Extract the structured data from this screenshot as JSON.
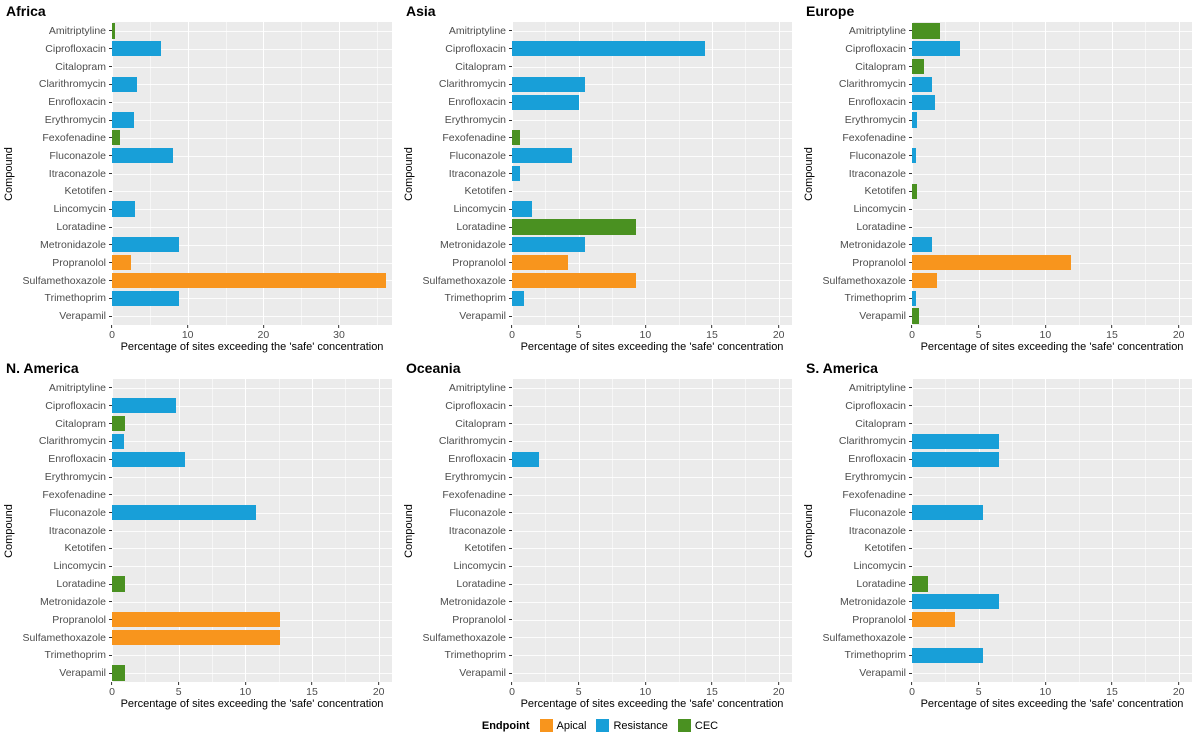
{
  "legend": {
    "title": "Endpoint",
    "entries": [
      {
        "label": "Apical",
        "color": "#F8951D"
      },
      {
        "label": "Resistance",
        "color": "#189FD8"
      },
      {
        "label": "CEC",
        "color": "#4A9121"
      }
    ]
  },
  "chart_data": {
    "type": "bar",
    "orientation": "horizontal",
    "xlabel": "Percentage of sites exceeding the 'safe' concentration",
    "ylabel": "Compound",
    "panel_background": "#EBEBEB",
    "grid": "white major and minor vertical lines, white horizontal lines per category",
    "legend_position": "bottom",
    "categories": [
      "Amitriptyline",
      "Ciprofloxacin",
      "Citalopram",
      "Clarithromycin",
      "Enrofloxacin",
      "Erythromycin",
      "Fexofenadine",
      "Fluconazole",
      "Itraconazole",
      "Ketotifen",
      "Lincomycin",
      "Loratadine",
      "Metronidazole",
      "Propranolol",
      "Sulfamethoxazole",
      "Trimethoprim",
      "Verapamil"
    ],
    "panels": [
      {
        "title": "Africa",
        "xlim": [
          0,
          37
        ],
        "xticks": [
          0,
          10,
          20,
          30
        ],
        "values": [
          {
            "v": 0.4,
            "e": "CEC"
          },
          {
            "v": 6.5,
            "e": "Resistance"
          },
          null,
          {
            "v": 3.3,
            "e": "Resistance"
          },
          null,
          {
            "v": 2.9,
            "e": "Resistance"
          },
          {
            "v": 1.0,
            "e": "CEC"
          },
          {
            "v": 8.0,
            "e": "Resistance"
          },
          null,
          null,
          {
            "v": 3.0,
            "e": "Resistance"
          },
          null,
          {
            "v": 8.8,
            "e": "Resistance"
          },
          {
            "v": 2.5,
            "e": "Apical"
          },
          {
            "v": 36.2,
            "e": "Apical"
          },
          {
            "v": 8.8,
            "e": "Resistance"
          },
          null
        ]
      },
      {
        "title": "Asia",
        "xlim": [
          0,
          21
        ],
        "xticks": [
          0,
          5,
          10,
          15,
          20
        ],
        "values": [
          null,
          {
            "v": 14.5,
            "e": "Resistance"
          },
          null,
          {
            "v": 5.5,
            "e": "Resistance"
          },
          {
            "v": 5.0,
            "e": "Resistance"
          },
          null,
          {
            "v": 0.6,
            "e": "CEC"
          },
          {
            "v": 4.5,
            "e": "Resistance"
          },
          {
            "v": 0.6,
            "e": "Resistance"
          },
          null,
          {
            "v": 1.5,
            "e": "Resistance"
          },
          {
            "v": 9.3,
            "e": "CEC"
          },
          {
            "v": 5.5,
            "e": "Resistance"
          },
          {
            "v": 4.2,
            "e": "Apical"
          },
          {
            "v": 9.3,
            "e": "Apical"
          },
          {
            "v": 0.9,
            "e": "Resistance"
          },
          null
        ]
      },
      {
        "title": "Europe",
        "xlim": [
          0,
          21
        ],
        "xticks": [
          0,
          5,
          10,
          15,
          20
        ],
        "values": [
          {
            "v": 2.1,
            "e": "CEC"
          },
          {
            "v": 3.6,
            "e": "Resistance"
          },
          {
            "v": 0.9,
            "e": "CEC"
          },
          {
            "v": 1.5,
            "e": "Resistance"
          },
          {
            "v": 1.7,
            "e": "Resistance"
          },
          {
            "v": 0.4,
            "e": "Resistance"
          },
          null,
          {
            "v": 0.3,
            "e": "Resistance"
          },
          null,
          {
            "v": 0.4,
            "e": "CEC"
          },
          null,
          null,
          {
            "v": 1.5,
            "e": "Resistance"
          },
          {
            "v": 11.9,
            "e": "Apical"
          },
          {
            "v": 1.9,
            "e": "Apical"
          },
          {
            "v": 0.3,
            "e": "Resistance"
          },
          {
            "v": 0.5,
            "e": "CEC"
          }
        ]
      },
      {
        "title": "N. America",
        "xlim": [
          0,
          21
        ],
        "xticks": [
          0,
          5,
          10,
          15,
          20
        ],
        "values": [
          null,
          {
            "v": 4.8,
            "e": "Resistance"
          },
          {
            "v": 1.0,
            "e": "CEC"
          },
          {
            "v": 0.9,
            "e": "Resistance"
          },
          {
            "v": 5.5,
            "e": "Resistance"
          },
          null,
          null,
          {
            "v": 10.8,
            "e": "Resistance"
          },
          null,
          null,
          null,
          {
            "v": 1.0,
            "e": "CEC"
          },
          null,
          {
            "v": 12.6,
            "e": "Apical"
          },
          {
            "v": 12.6,
            "e": "Apical"
          },
          null,
          {
            "v": 1.0,
            "e": "CEC"
          }
        ]
      },
      {
        "title": "Oceania",
        "xlim": [
          0,
          21
        ],
        "xticks": [
          0,
          5,
          10,
          15,
          20
        ],
        "values": [
          null,
          null,
          null,
          null,
          {
            "v": 2.0,
            "e": "Resistance"
          },
          null,
          null,
          null,
          null,
          null,
          null,
          null,
          null,
          null,
          null,
          null,
          null
        ]
      },
      {
        "title": "S. America",
        "xlim": [
          0,
          21
        ],
        "xticks": [
          0,
          5,
          10,
          15,
          20
        ],
        "values": [
          null,
          null,
          null,
          {
            "v": 6.5,
            "e": "Resistance"
          },
          {
            "v": 6.5,
            "e": "Resistance"
          },
          null,
          null,
          {
            "v": 5.3,
            "e": "Resistance"
          },
          null,
          null,
          null,
          {
            "v": 1.2,
            "e": "CEC"
          },
          {
            "v": 6.5,
            "e": "Resistance"
          },
          {
            "v": 3.2,
            "e": "Apical"
          },
          null,
          {
            "v": 5.3,
            "e": "Resistance"
          },
          null
        ]
      }
    ]
  }
}
